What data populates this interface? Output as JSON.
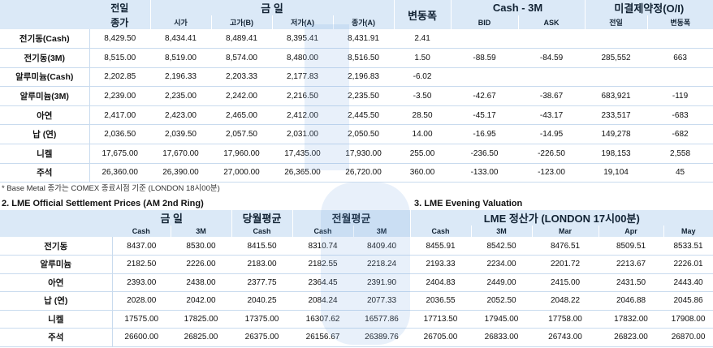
{
  "top": {
    "h_prev": "전일",
    "h_prev_sub": "종가",
    "h_today": "금  일",
    "h_change": "변동폭",
    "h_spread": "Cash - 3M",
    "h_oi": "미결제약정(O/I)",
    "sub": [
      "시가",
      "고가(B)",
      "저가(A)",
      "종가(A)",
      "BID",
      "ASK",
      "전일",
      "변동폭"
    ],
    "rows": [
      {
        "name": "전기동(Cash)",
        "prev": "8,429.50",
        "open": "8,434.41",
        "high": "8,489.41",
        "low": "8,395.41",
        "close": "8,431.91",
        "chg": "2.41",
        "bid": "",
        "ask": "",
        "oi_prev": "",
        "oi_chg": ""
      },
      {
        "name": "전기동(3M)",
        "prev": "8,515.00",
        "open": "8,519.00",
        "high": "8,574.00",
        "low": "8,480.00",
        "close": "8,516.50",
        "chg": "1.50",
        "bid": "-88.59",
        "ask": "-84.59",
        "oi_prev": "285,552",
        "oi_chg": "663"
      },
      {
        "name": "알루미늄(Cash)",
        "prev": "2,202.85",
        "open": "2,196.33",
        "high": "2,203.33",
        "low": "2,177.83",
        "close": "2,196.83",
        "chg": "-6.02",
        "bid": "",
        "ask": "",
        "oi_prev": "",
        "oi_chg": ""
      },
      {
        "name": "알루미늄(3M)",
        "prev": "2,239.00",
        "open": "2,235.00",
        "high": "2,242.00",
        "low": "2,216.50",
        "close": "2,235.50",
        "chg": "-3.50",
        "bid": "-42.67",
        "ask": "-38.67",
        "oi_prev": "683,921",
        "oi_chg": "-119"
      },
      {
        "name": "아연",
        "prev": "2,417.00",
        "open": "2,423.00",
        "high": "2,465.00",
        "low": "2,412.00",
        "close": "2,445.50",
        "chg": "28.50",
        "bid": "-45.17",
        "ask": "-43.17",
        "oi_prev": "233,517",
        "oi_chg": "-683"
      },
      {
        "name": "납 (연)",
        "prev": "2,036.50",
        "open": "2,039.50",
        "high": "2,057.50",
        "low": "2,031.00",
        "close": "2,050.50",
        "chg": "14.00",
        "bid": "-16.95",
        "ask": "-14.95",
        "oi_prev": "149,278",
        "oi_chg": "-682"
      },
      {
        "name": "니켈",
        "prev": "17,675.00",
        "open": "17,670.00",
        "high": "17,960.00",
        "low": "17,435.00",
        "close": "17,930.00",
        "chg": "255.00",
        "bid": "-236.50",
        "ask": "-226.50",
        "oi_prev": "198,153",
        "oi_chg": "2,558"
      },
      {
        "name": "주석",
        "prev": "26,360.00",
        "open": "26,390.00",
        "high": "27,000.00",
        "low": "26,365.00",
        "close": "26,720.00",
        "chg": "360.00",
        "bid": "-133.00",
        "ask": "-123.00",
        "oi_prev": "19,104",
        "oi_chg": "45"
      }
    ]
  },
  "note": "* Base Metal 종가는 COMEX 종료시점 기준 (LONDON 18시00분)",
  "settle": {
    "title": "2. LME Official Settlement Prices (AM 2nd Ring)",
    "h_today": "금  일",
    "h_month": "당월평균",
    "h_prevmonth": "전월평균",
    "sub": [
      "Cash",
      "3M",
      "Cash",
      "Cash",
      "3M"
    ],
    "rows": [
      {
        "name": "전기동",
        "c": "8437.00",
        "m3": "8530.00",
        "mc": "8415.50",
        "pc": "8310.74",
        "p3": "8409.40"
      },
      {
        "name": "알루미늄",
        "c": "2182.50",
        "m3": "2226.00",
        "mc": "2183.00",
        "pc": "2182.55",
        "p3": "2218.24"
      },
      {
        "name": "아연",
        "c": "2393.00",
        "m3": "2438.00",
        "mc": "2377.75",
        "pc": "2364.45",
        "p3": "2391.90"
      },
      {
        "name": "납 (연)",
        "c": "2028.00",
        "m3": "2042.00",
        "mc": "2040.25",
        "pc": "2084.24",
        "p3": "2077.33"
      },
      {
        "name": "니켈",
        "c": "17575.00",
        "m3": "17825.00",
        "mc": "17375.00",
        "pc": "16307.62",
        "p3": "16577.86"
      },
      {
        "name": "주석",
        "c": "26600.00",
        "m3": "26825.00",
        "mc": "26375.00",
        "pc": "26156.67",
        "p3": "26389.76"
      }
    ]
  },
  "evening": {
    "title": "3. LME Evening Valuation",
    "header": "LME 정산가 (LONDON 17시00분)",
    "sub": [
      "Cash",
      "3M",
      "Mar",
      "Apr",
      "May"
    ],
    "rows": [
      [
        "8455.91",
        "8542.50",
        "8476.51",
        "8509.51",
        "8533.51"
      ],
      [
        "2193.33",
        "2234.00",
        "2201.72",
        "2213.67",
        "2226.01"
      ],
      [
        "2404.83",
        "2449.00",
        "2415.00",
        "2431.50",
        "2443.40"
      ],
      [
        "2036.55",
        "2052.50",
        "2048.22",
        "2046.88",
        "2045.86"
      ],
      [
        "17713.50",
        "17945.00",
        "17758.00",
        "17832.00",
        "17908.00"
      ],
      [
        "26705.00",
        "26833.00",
        "26743.00",
        "26823.00",
        "26870.00"
      ]
    ]
  }
}
